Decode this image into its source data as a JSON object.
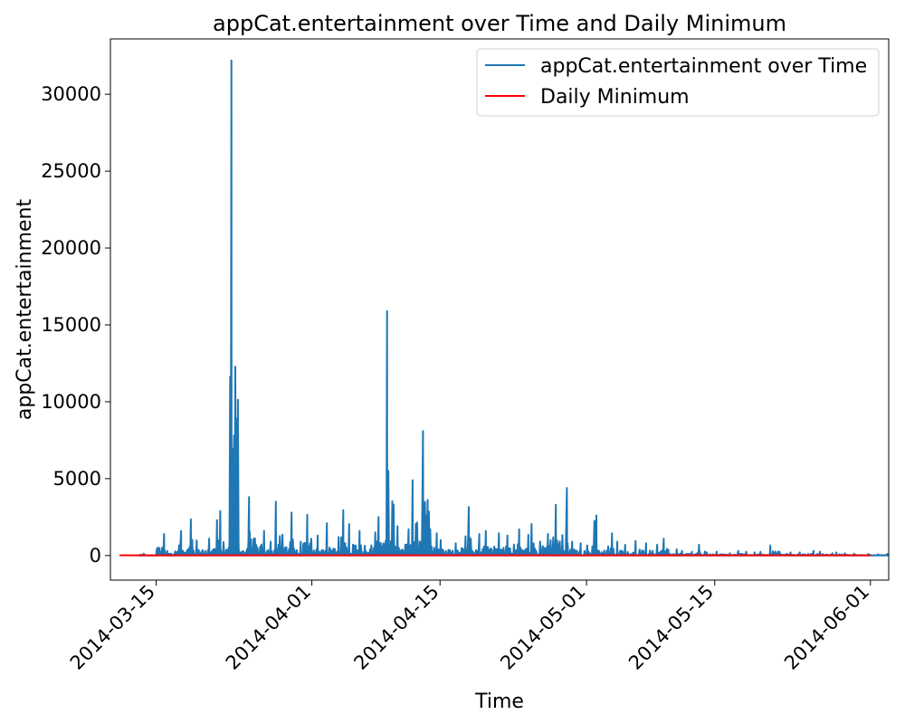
{
  "chart_data": {
    "type": "line",
    "title": "appCat.entertainment over Time and Daily Minimum",
    "xlabel": "Time",
    "ylabel": "appCat.entertainment",
    "xlim": [
      "2014-03-10",
      "2014-06-03"
    ],
    "ylim": [
      -1600,
      33600
    ],
    "x_ticks": [
      "2014-03-15",
      "2014-04-01",
      "2014-04-15",
      "2014-05-01",
      "2014-05-15",
      "2014-06-01"
    ],
    "y_ticks": [
      0,
      5000,
      10000,
      15000,
      20000,
      25000,
      30000
    ],
    "y_tick_labels": [
      "0",
      "5000",
      "10000",
      "15000",
      "20000",
      "25000",
      "30000"
    ],
    "grid": false,
    "legend_position": "top-right",
    "colors": {
      "series1": "#1f77b4",
      "series2": "#ff0000"
    },
    "series": [
      {
        "name": "appCat.entertainment over Time",
        "x": [
          "2014-03-13",
          "2014-03-15",
          "2014-03-16",
          "2014-03-17",
          "2014-03-18",
          "2014-03-19",
          "2014-03-20",
          "2014-03-21",
          "2014-03-22",
          "2014-03-23",
          "2014-03-24",
          "2014-03-25",
          "2014-03-26",
          "2014-03-27",
          "2014-03-28",
          "2014-03-29",
          "2014-03-30",
          "2014-03-31",
          "2014-04-01",
          "2014-04-02",
          "2014-04-03",
          "2014-04-04",
          "2014-04-05",
          "2014-04-06",
          "2014-04-07",
          "2014-04-08",
          "2014-04-09",
          "2014-04-10",
          "2014-04-11",
          "2014-04-12",
          "2014-04-13",
          "2014-04-14",
          "2014-04-15",
          "2014-04-16",
          "2014-04-17",
          "2014-04-18",
          "2014-04-19",
          "2014-04-20",
          "2014-04-21",
          "2014-04-22",
          "2014-04-23",
          "2014-04-24",
          "2014-04-25",
          "2014-04-26",
          "2014-04-27",
          "2014-04-28",
          "2014-04-29",
          "2014-04-30",
          "2014-05-01",
          "2014-05-02",
          "2014-05-03",
          "2014-05-04",
          "2014-05-05",
          "2014-05-06",
          "2014-05-07",
          "2014-05-08",
          "2014-05-09",
          "2014-05-10",
          "2014-05-11",
          "2014-05-12",
          "2014-05-13",
          "2014-05-14",
          "2014-05-15",
          "2014-05-16",
          "2014-05-17",
          "2014-05-18",
          "2014-05-19",
          "2014-05-20",
          "2014-05-21",
          "2014-05-22",
          "2014-05-23",
          "2014-05-24",
          "2014-05-25",
          "2014-05-26",
          "2014-05-27",
          "2014-05-28",
          "2014-05-29",
          "2014-05-30",
          "2014-05-31",
          "2014-06-01",
          "2014-06-02"
        ],
        "values": [
          120,
          1400,
          300,
          1600,
          2350,
          980,
          1100,
          2300,
          2900,
          32200,
          1000,
          3800,
          1600,
          900,
          3500,
          2800,
          900,
          2650,
          1300,
          2100,
          1200,
          2950,
          2050,
          1600,
          1500,
          2500,
          15900,
          1900,
          1700,
          4900,
          8100,
          1450,
          1000,
          800,
          1250,
          3150,
          1400,
          1600,
          1450,
          1300,
          1700,
          1350,
          2050,
          1400,
          3300,
          4400,
          900,
          800,
          2250,
          2600,
          1450,
          900,
          700,
          950,
          800,
          700,
          1100,
          400,
          300,
          250,
          700,
          200,
          250,
          150,
          300,
          250,
          200,
          250,
          650,
          250,
          200,
          200,
          300,
          250,
          150,
          200,
          150,
          120,
          100,
          80,
          100
        ]
      },
      {
        "name": "Daily Minimum",
        "x": [
          "2014-03-11",
          "2014-06-01"
        ],
        "values": [
          10,
          10
        ]
      }
    ]
  }
}
